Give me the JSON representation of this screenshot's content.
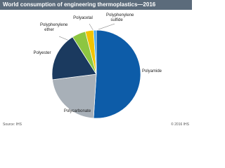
{
  "chart_data": {
    "type": "pie",
    "title": "World consumption of engineering thermoplastics—2016",
    "categories": [
      "Polyamide",
      "Polycarbonate",
      "Polyester",
      "Polyphenylene ether",
      "Polyacetal",
      "Polyphenylene sulfide"
    ],
    "values": [
      51,
      22,
      18,
      5,
      3,
      1
    ],
    "colors": [
      "#0d5ca8",
      "#a8b0b8",
      "#1b3a5f",
      "#8dc641",
      "#f2c300",
      "#3ea8ef"
    ],
    "source": "Source: IHS",
    "copyright": "© 2016 IHS"
  }
}
